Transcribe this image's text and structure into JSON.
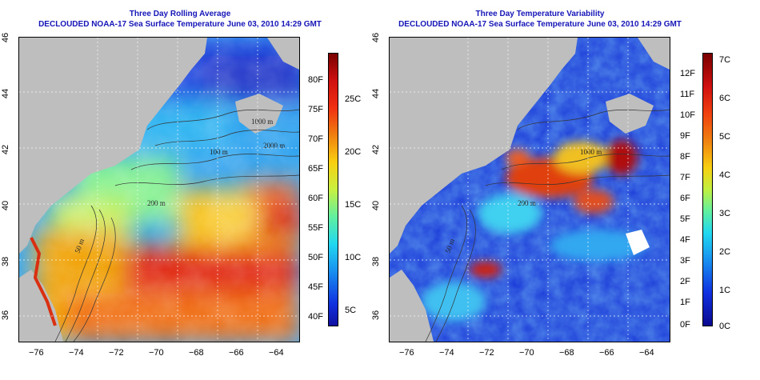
{
  "panels": [
    {
      "title_line1": "Three Day Rolling Average",
      "title_line2": "DECLOUDED NOAA-17 Sea Surface Temperature June 03, 2010 14:29 GMT",
      "contour_labels": [
        "50 m",
        "200 m",
        "1000 m",
        "2000 m",
        "100 m",
        "50 m"
      ],
      "colorbar_left_labels": [
        "80F",
        "75F",
        "70F",
        "65F",
        "60F",
        "55F",
        "50F",
        "45F",
        "40F"
      ],
      "colorbar_right_labels": [
        "25C",
        "20C",
        "15C",
        "10C",
        "5C"
      ]
    },
    {
      "title_line1": "Three Day Temperature Variability",
      "title_line2": "DECLOUDED NOAA-17 Sea Surface Temperature June 03, 2010 14:29 GMT",
      "contour_labels": [
        "200 m",
        "1000 m",
        "50 m"
      ],
      "colorbar_left_labels": [
        "12F",
        "11F",
        "10F",
        "9F",
        "8F",
        "7F",
        "6F",
        "5F",
        "4F",
        "3F",
        "2F",
        "1F",
        "0F"
      ],
      "colorbar_right_labels": [
        "7C",
        "6C",
        "5C",
        "4C",
        "3C",
        "2C",
        "1C",
        "0C"
      ]
    }
  ],
  "x_ticks": [
    "−76",
    "−74",
    "−72",
    "−70",
    "−68",
    "−66",
    "−64"
  ],
  "y_ticks": [
    "46",
    "44",
    "42",
    "40",
    "38",
    "36"
  ],
  "colors": {
    "title": "#1515b8",
    "land": "#bebebe",
    "warm": "#d01010",
    "cold": "#1a2aa8"
  }
}
